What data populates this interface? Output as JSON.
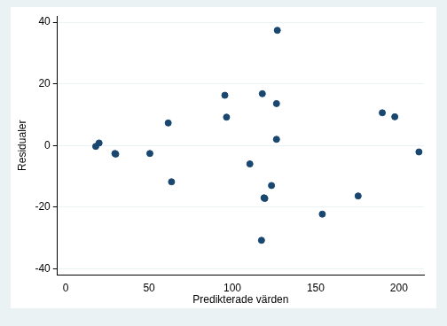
{
  "chart_data": {
    "type": "scatter",
    "x_label": "Predikterade värden",
    "y_label": "Residualer",
    "x": [
      18,
      20,
      29.5,
      30,
      50.5,
      61.5,
      63.5,
      95.5,
      96.5,
      110.5,
      118,
      119,
      119.5,
      117.5,
      123.5,
      126.5,
      126.5,
      127,
      154,
      175.5,
      190,
      197.5,
      212
    ],
    "values": [
      -0.3,
      0.8,
      -2.6,
      -2.8,
      -2.6,
      7.3,
      -11.8,
      16.3,
      9.2,
      -6,
      16.8,
      -17,
      -17.2,
      -30.8,
      -13,
      13.6,
      2,
      37.4,
      -22.3,
      -16.4,
      10.6,
      9.3,
      -2.1
    ],
    "color": "#1a476f",
    "marker": "circle",
    "xlim": [
      -5,
      215
    ],
    "xticks": [
      0,
      50,
      100,
      150,
      200
    ],
    "ylim": [
      -42,
      42
    ],
    "yticks": [
      -40,
      -20,
      0,
      20,
      40
    ],
    "grid": true
  }
}
